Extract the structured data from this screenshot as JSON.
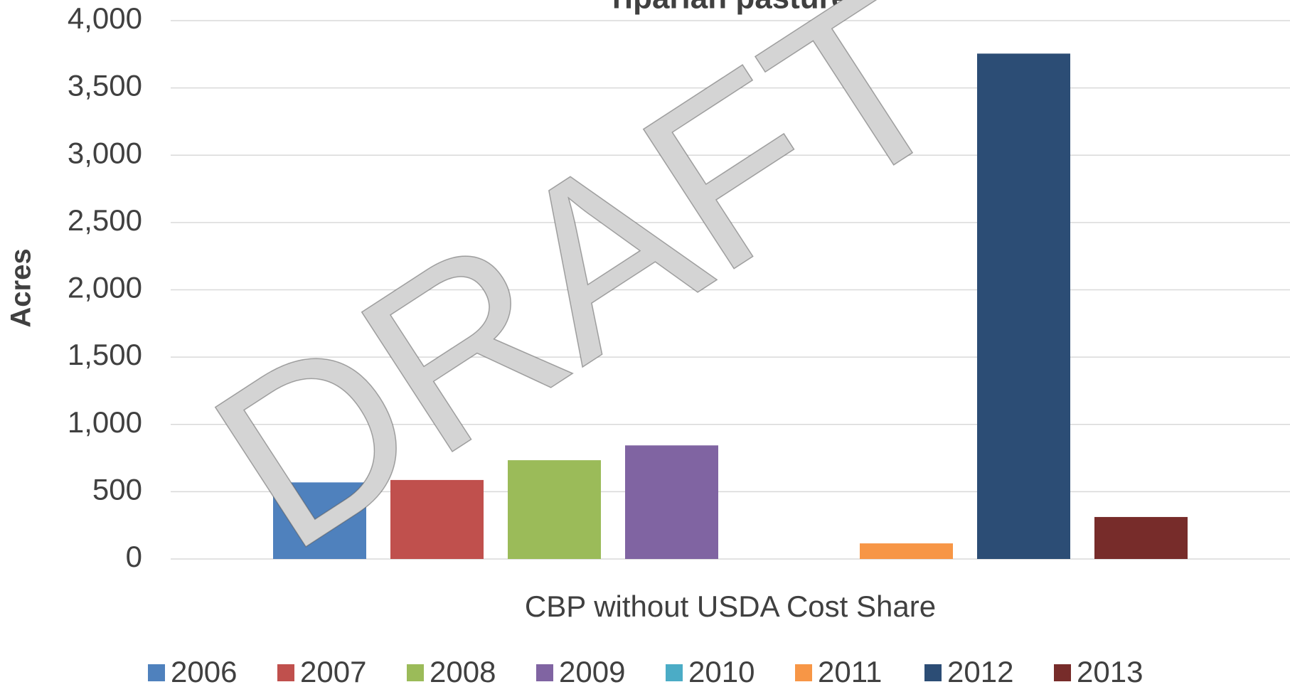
{
  "chart_data": {
    "type": "bar",
    "title": "riparian pasture",
    "annotation": "DRAFT",
    "categories": [
      "CBP without USDA Cost Share"
    ],
    "ylabel": "Acres",
    "series": [
      {
        "name": "2006",
        "color": "#4f81bd",
        "values": [
          569
        ]
      },
      {
        "name": "2007",
        "color": "#c0504d",
        "values": [
          587
        ]
      },
      {
        "name": "2008",
        "color": "#9bbb59",
        "values": [
          734
        ]
      },
      {
        "name": "2009",
        "color": "#8064a2",
        "values": [
          844
        ]
      },
      {
        "name": "2010",
        "color": "#4bacc6",
        "values": [
          0
        ]
      },
      {
        "name": "2011",
        "color": "#f79646",
        "values": [
          116
        ]
      },
      {
        "name": "2012",
        "color": "#2c4d75",
        "values": [
          3755
        ]
      },
      {
        "name": "2013",
        "color": "#772c2a",
        "values": [
          312
        ]
      }
    ],
    "ylim": [
      0,
      4000
    ],
    "yticks": [
      0,
      500,
      {
        "value": 1000,
        "label": "1,000"
      },
      {
        "value": 1500,
        "label": "1,500"
      },
      {
        "value": 2000,
        "label": "2,000"
      },
      {
        "value": 2500,
        "label": "2,500"
      },
      {
        "value": 3000,
        "label": "3,000"
      },
      {
        "value": 3500,
        "label": "3,500"
      },
      {
        "value": 4000,
        "label": "4,000"
      }
    ],
    "grid": true,
    "legend": "bottom"
  }
}
